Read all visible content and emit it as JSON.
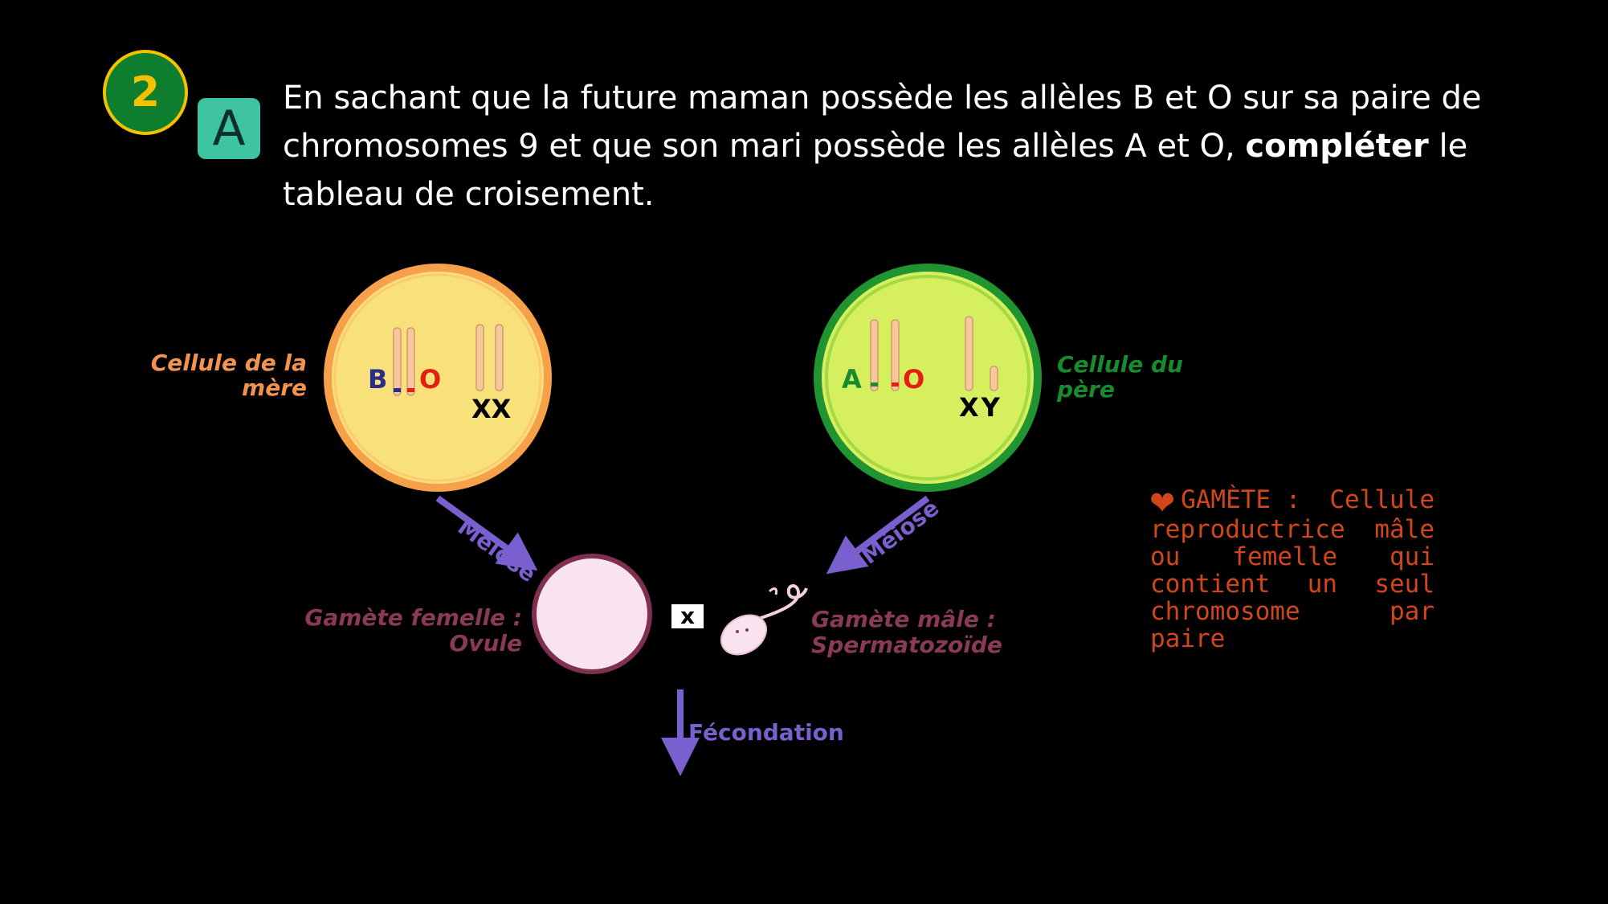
{
  "step_number": "2",
  "part_letter": "A",
  "question": {
    "text_before": "En sachant que la future maman possède les allèles B et O sur sa paire de chromosomes 9 et que son mari possède les allèles A et O,",
    "bold": "compléter",
    "text_after": "le tableau de croisement."
  },
  "mother_cell": {
    "label_line1": "Cellule de la",
    "label_line2": "mère",
    "allele_left": "B",
    "allele_right": "O",
    "sex_chromosomes": "XX"
  },
  "father_cell": {
    "label_line1": "Cellule du",
    "label_line2": "père",
    "allele_left": "A",
    "allele_right": "O",
    "sex_chromosomes": "XY"
  },
  "meiosis_label": "Méiose",
  "female_gamete": {
    "label_line1": "Gamète femelle :",
    "label_line2": "Ovule"
  },
  "male_gamete": {
    "label_line1": "Gamète mâle :",
    "label_line2": "Spermatozoïde"
  },
  "cross_symbol": "x",
  "fecundation_label": "Fécondation",
  "definition": {
    "term": "GAMÈTE :",
    "first_word": "Cellule",
    "body": "reproductrice mâle ou femelle qui contient un seul chromosome par",
    "last": "paire"
  },
  "colors": {
    "mother_label": "#f3934d",
    "mother_fill": "#f8e07a",
    "mother_ring": "#f7a04a",
    "father_label": "#168c2f",
    "father_fill": "#d6ef5e",
    "father_ring": "#1f9430",
    "arrow": "#7a5fcf",
    "gamete_label": "#8a3a55",
    "definition": "#d2461c",
    "allele_B": "#2b2d8c",
    "allele_O": "#e41e10",
    "allele_A": "#168c2f"
  }
}
